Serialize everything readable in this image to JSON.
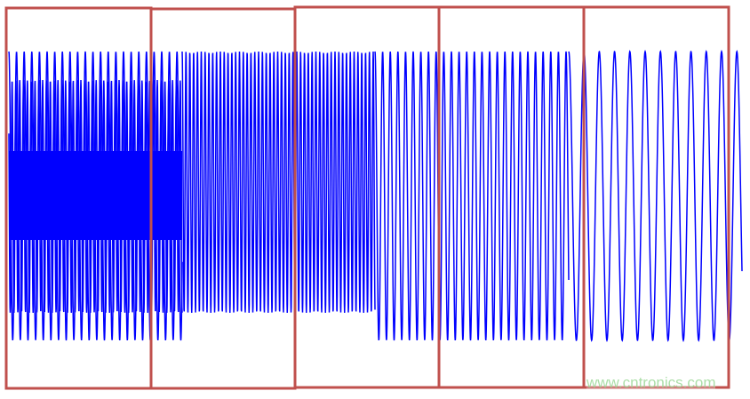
{
  "chart_data": {
    "type": "line",
    "title": "",
    "xlabel": "",
    "ylabel": "",
    "axes": false,
    "grid": false,
    "series": [
      {
        "color": "#0000ff"
      }
    ],
    "highlight_boxes": {
      "count": 5,
      "color": "#c0504d"
    }
  },
  "watermark": "www.cntronics.com"
}
